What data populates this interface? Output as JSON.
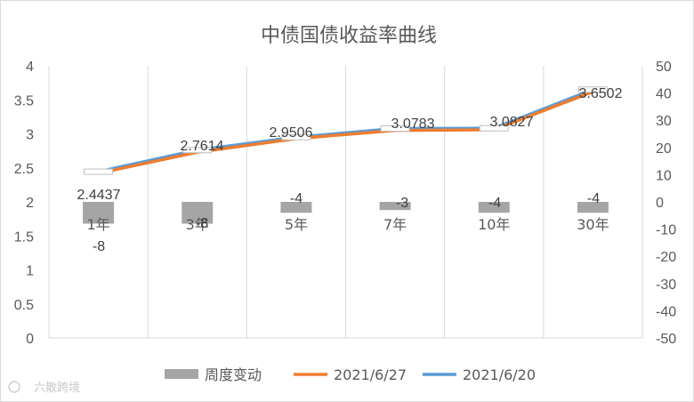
{
  "chart_data": {
    "type": "bar+line",
    "title": "中债国债收益率曲线",
    "categories": [
      "1年",
      "3年",
      "5年",
      "7年",
      "10年",
      "30年"
    ],
    "series": [
      {
        "name": "周度变动",
        "kind": "bar",
        "axis": "right",
        "values": [
          -8,
          -8,
          -4,
          -3,
          -4,
          -4
        ],
        "color": "#a5a5a5"
      },
      {
        "name": "2021/6/27",
        "kind": "line",
        "axis": "left",
        "values": [
          2.42,
          2.73,
          2.93,
          3.05,
          3.06,
          3.62
        ],
        "color": "#ed7d31"
      },
      {
        "name": "2021/6/20",
        "kind": "line",
        "axis": "left",
        "values": [
          2.4437,
          2.7614,
          2.9506,
          3.0783,
          3.0827,
          3.6502
        ],
        "color": "#5b9bd5"
      }
    ],
    "line_labels": [
      "2.4437",
      "2.7614",
      "2.9506",
      "3.0783",
      "3.0827",
      "3.6502"
    ],
    "bar_labels": [
      "-8",
      "-8",
      "-4",
      "-3",
      "-4",
      "-4"
    ],
    "y_left": {
      "min": 0,
      "max": 4,
      "step": 0.5,
      "ticks": [
        "0",
        "0.5",
        "1",
        "1.5",
        "2",
        "2.5",
        "3",
        "3.5",
        "4"
      ]
    },
    "y_right": {
      "min": -50,
      "max": 50,
      "step": 10,
      "ticks": [
        "-50",
        "-40",
        "-30",
        "-20",
        "-10",
        "0",
        "10",
        "20",
        "30",
        "40",
        "50"
      ]
    },
    "grid": "vertical",
    "legend_position": "bottom"
  },
  "watermark": "六散跨境"
}
